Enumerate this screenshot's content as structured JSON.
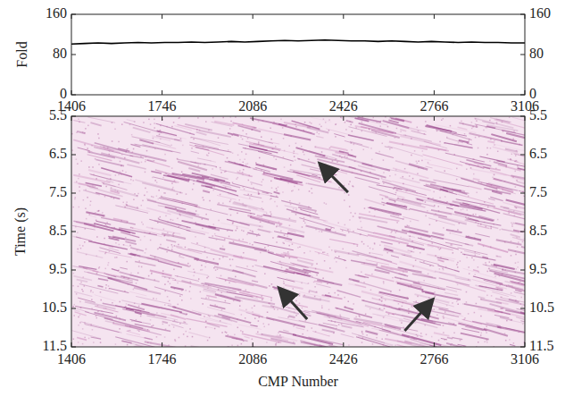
{
  "chart_data": [
    {
      "type": "line",
      "y_label": "Fold",
      "color": "#000000",
      "x": [
        1406,
        1456,
        1506,
        1556,
        1606,
        1656,
        1706,
        1756,
        1806,
        1856,
        1906,
        1956,
        2006,
        2056,
        2106,
        2156,
        2206,
        2256,
        2306,
        2356,
        2406,
        2456,
        2506,
        2556,
        2606,
        2656,
        2706,
        2756,
        2806,
        2856,
        2906,
        2956,
        3006,
        3056,
        3106
      ],
      "values": [
        101,
        102,
        103,
        102,
        103,
        104,
        103,
        104,
        104,
        105,
        104,
        105,
        106,
        105,
        106,
        107,
        108,
        107,
        108,
        109,
        108,
        107,
        107,
        106,
        107,
        106,
        105,
        106,
        105,
        104,
        105,
        104,
        104,
        103,
        103
      ],
      "xlim": [
        1406,
        3106
      ],
      "xticks": [
        1406,
        1746,
        2086,
        2426,
        2766,
        3106
      ],
      "ylim": [
        0,
        160
      ],
      "yticks": [
        0,
        80,
        160
      ]
    },
    {
      "type": "image",
      "x_label": "CMP Number",
      "y_label": "Time (s)",
      "xlim": [
        1406,
        3106
      ],
      "xticks": [
        1406,
        1746,
        2086,
        2426,
        2766,
        3106
      ],
      "ylim": [
        5.5,
        11.5
      ],
      "yticks": [
        5.5,
        6.5,
        7.5,
        8.5,
        9.5,
        10.5,
        11.5
      ]
    }
  ]
}
